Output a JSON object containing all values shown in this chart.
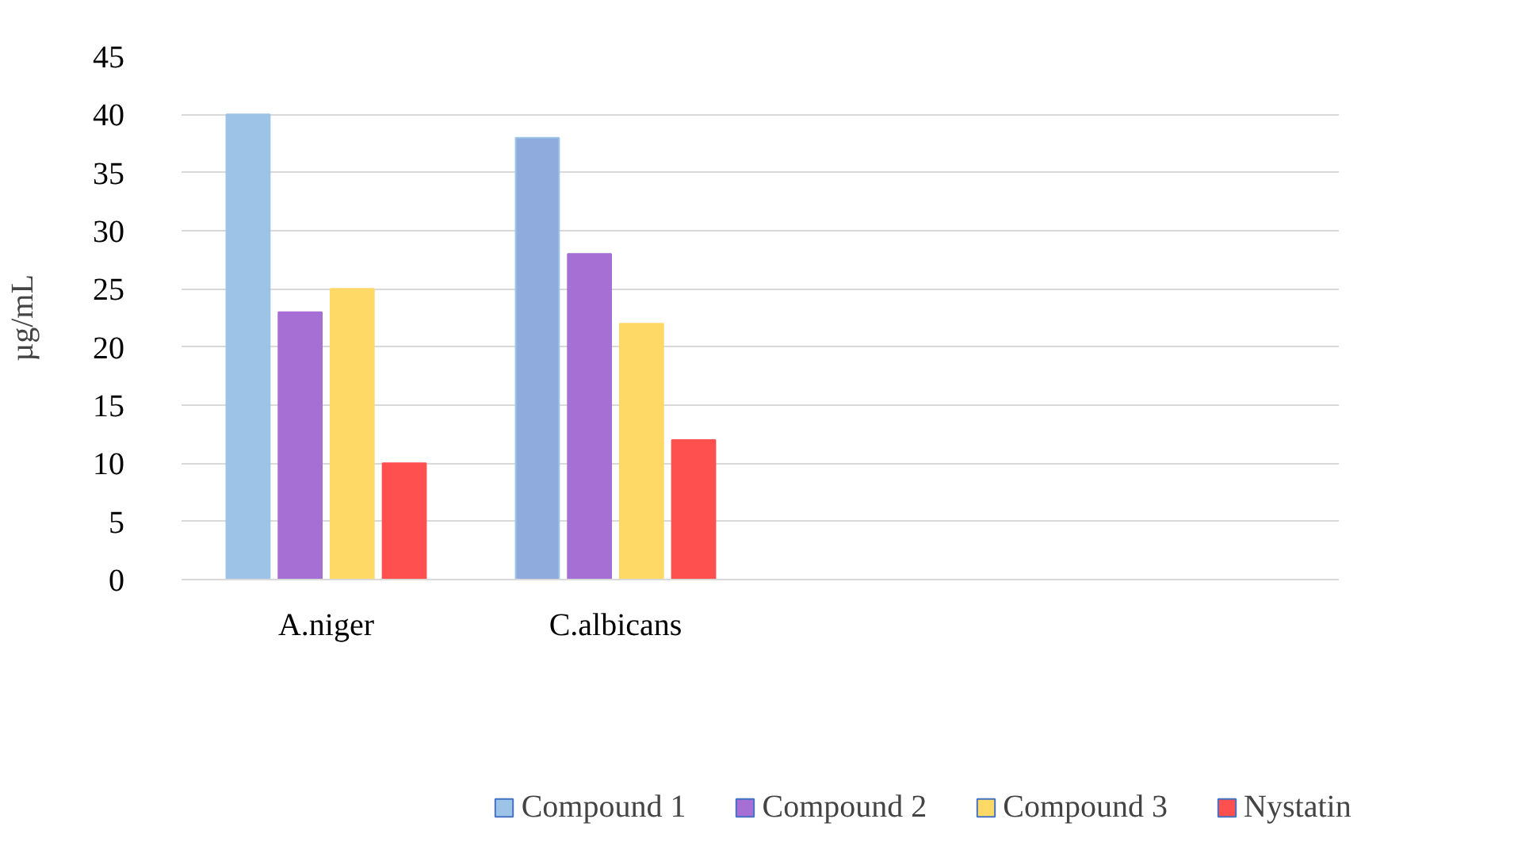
{
  "chart_data": {
    "type": "bar",
    "ylabel": "µg/mL",
    "categories": [
      "A.niger",
      "C.albicans",
      null,
      null
    ],
    "series": [
      {
        "name": "Compound 1",
        "color": "#9dc3e6",
        "colors": [
          "#9dc3e6",
          "#8faadc",
          "#9dc3e6",
          "#9dc3e6"
        ],
        "values": [
          40,
          38,
          null,
          null
        ]
      },
      {
        "name": "Compound 2",
        "color": "#a66fd4",
        "values": [
          23,
          28,
          null,
          null
        ]
      },
      {
        "name": "Compound 3",
        "color": "#ffd966",
        "values": [
          25,
          22,
          null,
          null
        ]
      },
      {
        "name": "Nystatin",
        "color": "#ff5050",
        "values": [
          10,
          12,
          null,
          null
        ]
      }
    ],
    "ylim": [
      0,
      45
    ],
    "yticks": [
      0,
      5,
      10,
      15,
      20,
      25,
      30,
      35,
      40,
      45
    ],
    "grid": "y",
    "legend": "bottom"
  }
}
